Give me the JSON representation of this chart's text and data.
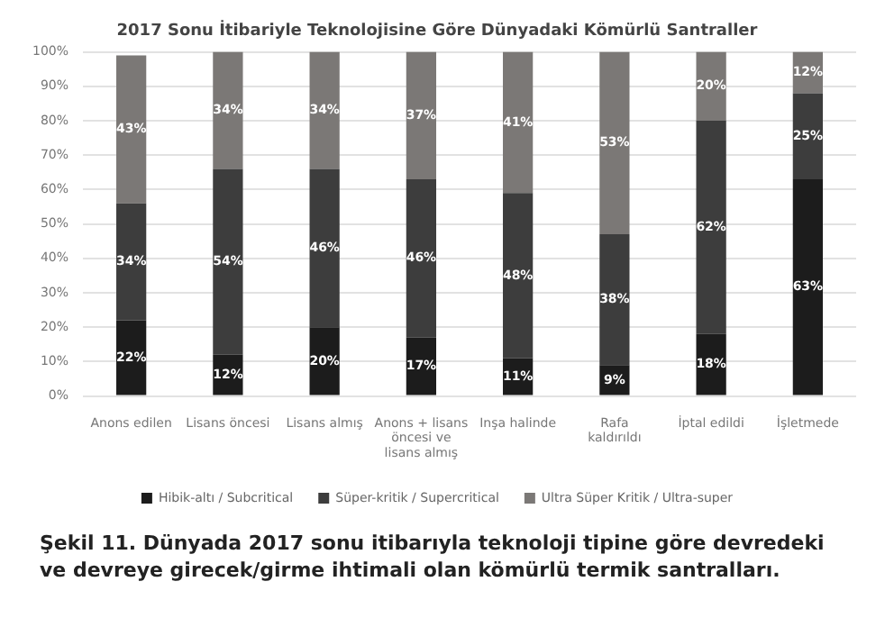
{
  "chart_data": {
    "type": "bar",
    "stacked": true,
    "title": "2017 Sonu İtibariyle Teknolojisine Göre Dünyadaki Kömürlü Santraller",
    "categories": [
      "Anons edilen",
      "Lisans öncesi",
      "Lisans almış",
      "Anons + lisans öncesi ve lisans almış",
      "Inşa halinde",
      "Rafa kaldırıldı",
      "İptal edildi",
      "İşletmede"
    ],
    "series": [
      {
        "name": "Hibik-altı / Subcritical",
        "color": "#1c1c1c",
        "values": [
          22,
          12,
          20,
          17,
          11,
          9,
          18,
          63
        ],
        "value_labels": [
          "22%",
          "12%",
          "20%",
          "17%",
          "11%",
          "9%",
          "18%",
          "63%"
        ]
      },
      {
        "name": "Süper-kritik / Supercritical",
        "color": "#3d3d3d",
        "values": [
          34,
          54,
          46,
          46,
          48,
          38,
          62,
          25
        ],
        "value_labels": [
          "34%",
          "54%",
          "46%",
          "46%",
          "48%",
          "38%",
          "62%",
          "25%"
        ]
      },
      {
        "name": "Ultra Süper Kritik / Ultra-super",
        "color": "#7b7876",
        "values": [
          43,
          34,
          34,
          37,
          41,
          53,
          20,
          12
        ],
        "value_labels": [
          "43%",
          "34%",
          "34%",
          "37%",
          "41%",
          "53%",
          "20%",
          "12%"
        ]
      }
    ],
    "ylim": [
      0,
      100
    ],
    "yticks": [
      {
        "value": 0,
        "label": "0%"
      },
      {
        "value": 10,
        "label": "10%"
      },
      {
        "value": 20,
        "label": "20%"
      },
      {
        "value": 30,
        "label": "30%"
      },
      {
        "value": 40,
        "label": "40%"
      },
      {
        "value": 50,
        "label": "50%"
      },
      {
        "value": 60,
        "label": "60%"
      },
      {
        "value": 70,
        "label": "70%"
      },
      {
        "value": 80,
        "label": "80%"
      },
      {
        "value": 90,
        "label": "90%"
      },
      {
        "value": 100,
        "label": "100%"
      }
    ],
    "grid": "y",
    "legend": "bottom",
    "annotations": [
      "Şekil 11. Dünyada 2017 sonu itibarıyla teknoloji tipine göre devredeki ve devreye girecek/girme ihtimali olan kömürlü termik santralları."
    ]
  }
}
